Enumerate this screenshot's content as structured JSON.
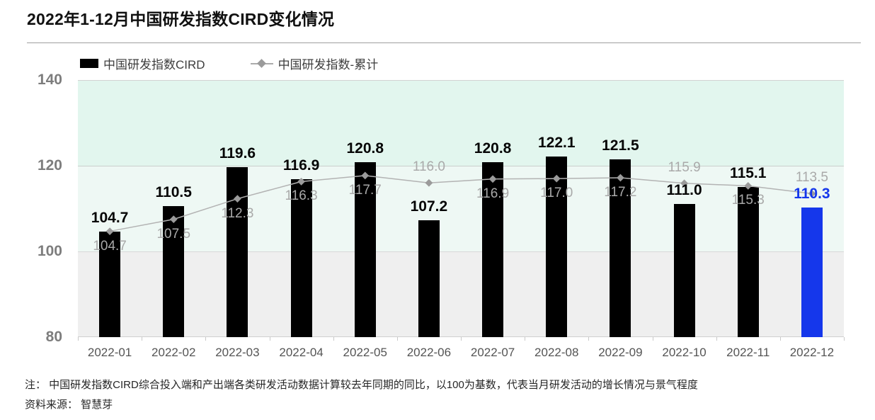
{
  "page": {
    "title": "2022年1-12月中国研发指数CIRD变化情况",
    "note": "注： 中国研发指数CIRD综合投入端和产出端各类研发活动数据计算较去年同期的同比，以100为基数，代表当月研发活动的增长情况与景气程度",
    "source": "资料来源： 智慧芽"
  },
  "legend": {
    "items": [
      {
        "label": "中国研发指数CIRD",
        "type": "bar",
        "color": "#000000"
      },
      {
        "label": "中国研发指数-累计",
        "type": "line",
        "color": "#9b9b9b"
      }
    ],
    "position": "top-left"
  },
  "chart_data": {
    "type": "bar",
    "subtype": "bar-line-combo",
    "title": "2022年1-12月中国研发指数CIRD变化情况",
    "categories": [
      "2022-01",
      "2022-02",
      "2022-03",
      "2022-04",
      "2022-05",
      "2022-06",
      "2022-07",
      "2022-08",
      "2022-09",
      "2022-10",
      "2022-11",
      "2022-12"
    ],
    "series": [
      {
        "name": "中国研发指数CIRD",
        "type": "bar",
        "values": [
          104.7,
          110.5,
          119.6,
          116.9,
          120.8,
          107.2,
          120.8,
          122.1,
          121.5,
          111.0,
          115.1,
          110.3
        ],
        "labels": [
          "104.7",
          "110.5",
          "119.6",
          "116.9",
          "120.8",
          "107.2",
          "120.8",
          "122.1",
          "121.5",
          "111.0",
          "115.1",
          "110.3"
        ],
        "color": "#000000",
        "highlight_index": 11,
        "highlight_color": "#1537eb"
      },
      {
        "name": "中国研发指数-累计",
        "type": "line",
        "values": [
          104.7,
          107.5,
          112.3,
          116.3,
          117.7,
          116.0,
          116.9,
          117.0,
          117.2,
          115.9,
          115.3,
          113.5
        ],
        "labels": [
          "104.7",
          "107.5",
          "112.3",
          "116.3",
          "117.7",
          "116.0",
          "116.9",
          "117.0",
          "117.2",
          "115.9",
          "115.3",
          "113.5"
        ],
        "label_position": [
          "below",
          "below",
          "below",
          "below",
          "below",
          "above",
          "below",
          "below",
          "below",
          "above",
          "below",
          "above"
        ],
        "line_color": "#b3b3b3",
        "marker": "diamond",
        "marker_color": "#9b9b9b",
        "label_color": "#a9a9a9"
      }
    ],
    "xlabel": "",
    "ylabel": "",
    "ylim": [
      80,
      140
    ],
    "y_ticks": [
      140,
      120,
      100,
      80
    ],
    "bands": [
      {
        "from": 120,
        "to": 140,
        "color": "#e2f6ee"
      },
      {
        "from": 100,
        "to": 120,
        "color": "#eef8f4"
      },
      {
        "from": 80,
        "to": 100,
        "color": "#efefef"
      }
    ],
    "grid": true,
    "legend_position": "top-left"
  }
}
